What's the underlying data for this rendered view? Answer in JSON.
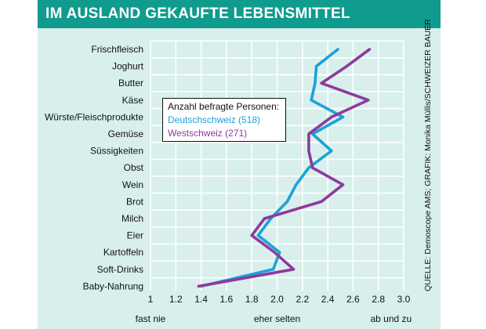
{
  "chart_data": {
    "type": "line",
    "title": "IM AUSLAND GEKAUFTE LEBENSMITTEL",
    "categories": [
      "Frischfleisch",
      "Joghurt",
      "Butter",
      "Käse",
      "Würste/Fleischprodukte",
      "Gemüse",
      "Süssigkeiten",
      "Obst",
      "Wein",
      "Brot",
      "Milch",
      "Eier",
      "Kartoffeln",
      "Soft-Drinks",
      "Baby-Nahrung"
    ],
    "xlim": [
      1.0,
      3.0
    ],
    "xticks": [
      "1",
      "1.2",
      "1.4",
      "1.6",
      "1.8",
      "2.0",
      "2.2",
      "2.4",
      "2.6",
      "2.8",
      "3.0"
    ],
    "axis_words": [
      "fast nie",
      "eher selten",
      "ab und zu"
    ],
    "legend_title": "Anzahl befragte Personen:",
    "series": [
      {
        "name": "Deutschschweiz (518)",
        "color": "#1aa3d9",
        "values": [
          2.48,
          2.31,
          2.3,
          2.27,
          2.52,
          2.28,
          2.43,
          2.25,
          2.15,
          2.08,
          1.95,
          1.85,
          2.02,
          1.97,
          1.4
        ]
      },
      {
        "name": "Westschweiz (271)",
        "color": "#8e3a9c",
        "values": [
          2.73,
          2.55,
          2.35,
          2.72,
          2.43,
          2.25,
          2.25,
          2.28,
          2.52,
          2.35,
          1.9,
          1.8,
          1.98,
          2.13,
          1.38
        ]
      }
    ]
  },
  "source": "QUELLE: Demoscope AMS; GRAFIK: Monika Müllis/SCHWEIZER BAUER"
}
